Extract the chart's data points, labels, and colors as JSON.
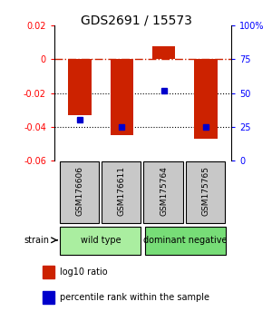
{
  "title": "GDS2691 / 15573",
  "samples": [
    "GSM176606",
    "GSM176611",
    "GSM175764",
    "GSM175765"
  ],
  "log10_ratio": [
    -0.033,
    -0.045,
    0.008,
    -0.047
  ],
  "percentile_rank": [
    30,
    25,
    52,
    25
  ],
  "ylim_left": [
    -0.06,
    0.02
  ],
  "ylim_right": [
    0,
    100
  ],
  "yticks_left": [
    -0.06,
    -0.04,
    -0.02,
    0.0,
    0.02
  ],
  "yticks_right": [
    0,
    25,
    50,
    75,
    100
  ],
  "bar_color": "#cc2200",
  "marker_color": "#0000cc",
  "bar_width": 0.55,
  "hline_color": "#cc2200",
  "sample_box_color": "#c8c8c8",
  "group_wild_color": "#aaeea0",
  "group_dom_color": "#77dd77",
  "legend_items": [
    {
      "color": "#cc2200",
      "label": "log10 ratio"
    },
    {
      "color": "#0000cc",
      "label": "percentile rank within the sample"
    }
  ],
  "title_fontsize": 10,
  "tick_fontsize": 7,
  "sample_fontsize": 6.5,
  "group_fontsize": 7,
  "legend_fontsize": 7
}
